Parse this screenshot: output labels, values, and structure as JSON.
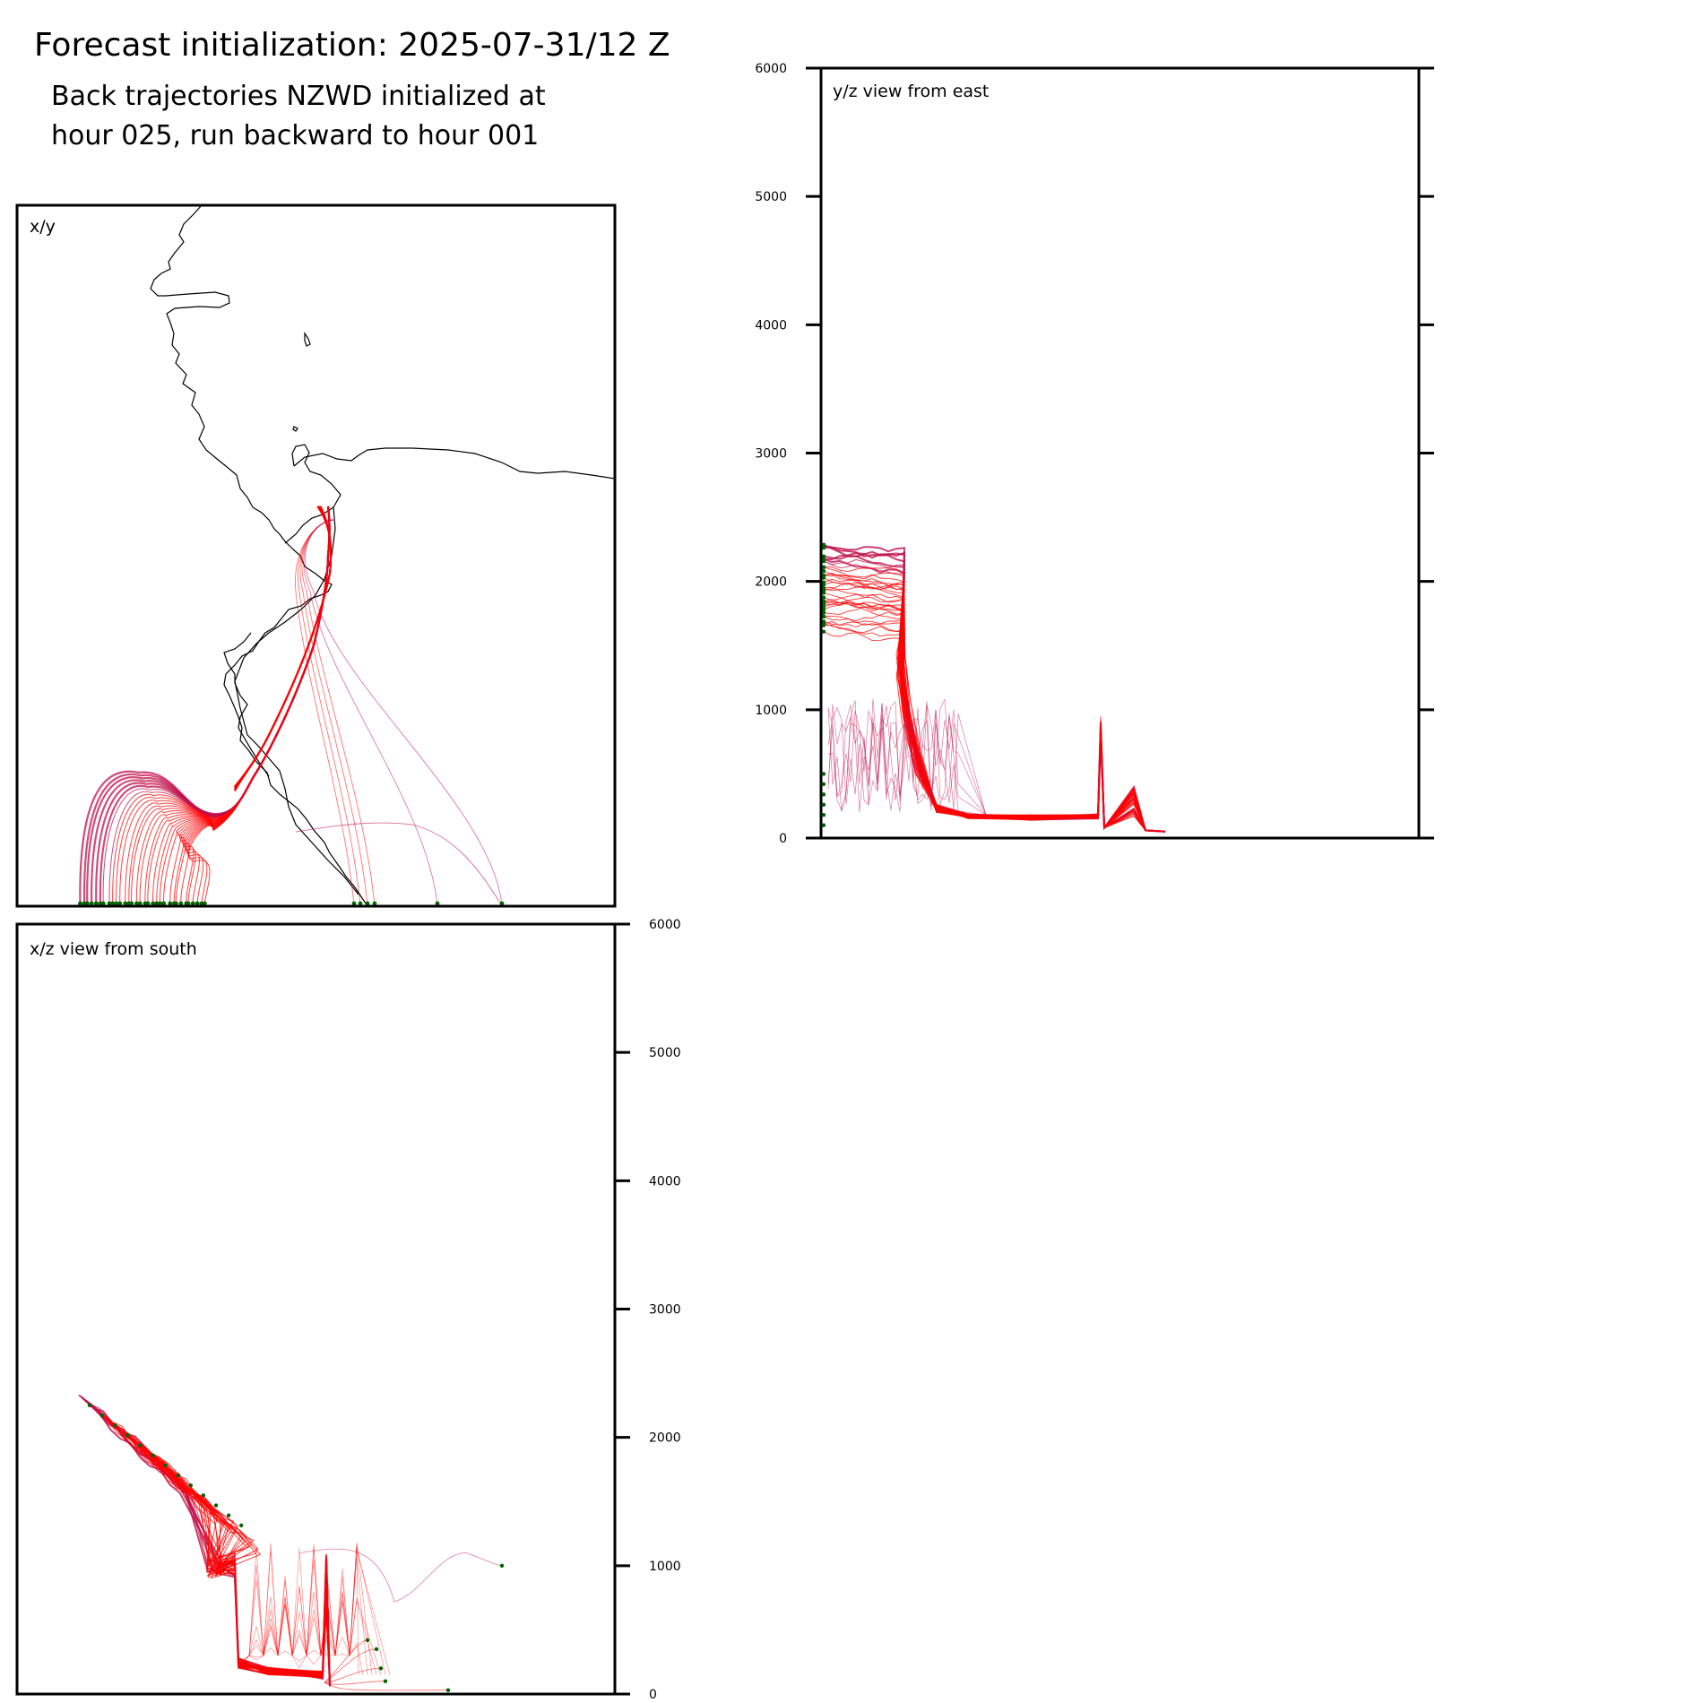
{
  "title": "Forecast initialization: 2025-07-31/12 Z",
  "subtitle_line1": "Back trajectories NZWD initialized at",
  "subtitle_line2": "hour 025, run backward to hour 001",
  "colors": {
    "trajectory": "#ff0000",
    "trajectory_alt": "#c0104a",
    "endpoint": "#006400",
    "coast": "#000000",
    "frame": "#000000"
  },
  "chart_data": [
    {
      "panel": "x/y",
      "type": "line",
      "label": "x/y",
      "description_kind": "map view of trajectories with coastline",
      "series": []
    },
    {
      "panel": "y/z",
      "type": "line",
      "label": "y/z view from east",
      "ylim": [
        0,
        6000
      ],
      "yticks": [
        "0",
        "1000",
        "2000",
        "3000",
        "4000",
        "5000",
        "6000"
      ],
      "series": []
    },
    {
      "panel": "x/z",
      "type": "line",
      "label": "x/z view from south",
      "ylim": [
        0,
        6000
      ],
      "yticks": [
        "0",
        "1000",
        "2000",
        "3000",
        "4000",
        "5000",
        "6000"
      ],
      "series": []
    }
  ],
  "panels": {
    "xy_label": "x/y",
    "yz_label": "y/z view from east",
    "xz_label": "x/z view from south"
  }
}
